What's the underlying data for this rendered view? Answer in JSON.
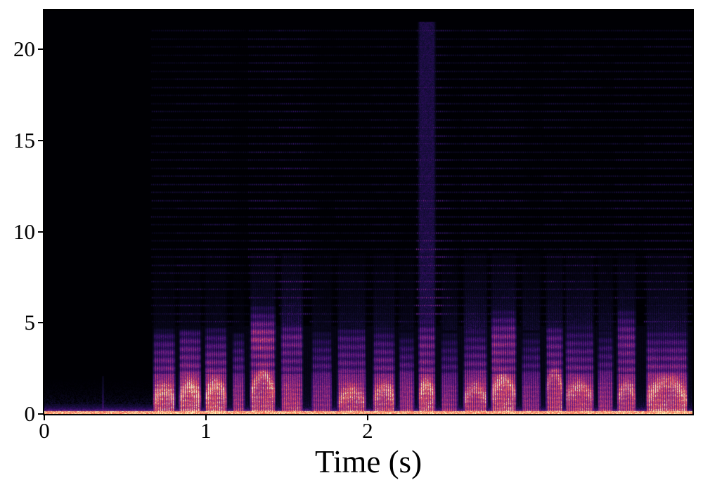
{
  "chart_data": {
    "type": "heatmap",
    "subtype": "speech-spectrogram",
    "title": "",
    "xlabel": "Time (s)",
    "ylabel": "",
    "xlim": [
      0,
      4.01
    ],
    "ylim": [
      0,
      22.13
    ],
    "x_ticks": [
      0,
      1,
      2
    ],
    "y_ticks": [
      0,
      5,
      10,
      15,
      20
    ],
    "grid": false,
    "legend": "none",
    "axis_color": "#000000",
    "background_color": "#000004",
    "colormap": {
      "name": "magma",
      "stops": [
        "#000004",
        "#100c30",
        "#320d64",
        "#58187e",
        "#7d2481",
        "#a4307d",
        "#cc4071",
        "#ed5860",
        "#fb8d61",
        "#fcfdbf"
      ]
    },
    "silence": {
      "t_start": 0.0,
      "t_end": 0.67,
      "click_t": 0.36,
      "noise_max_khz": 1.9
    },
    "speech": {
      "t_start": 0.67,
      "t_end": 3.98,
      "voiced_max_khz": 5.0,
      "harmonic_row_spacing_khz": 0.4435,
      "harmonic_rows_from_khz": 5.08,
      "harmonic_rows_to_khz": 21.4
    },
    "segments": [
      {
        "t0": 0.67,
        "t1": 0.81,
        "fmax": 4.6,
        "amp": 0.95,
        "harm": 0.55,
        "mid": 0.15,
        "fric": 0.0,
        "arc": [
          0.7,
          1.3
        ]
      },
      {
        "t0": 0.83,
        "t1": 0.97,
        "fmax": 4.6,
        "amp": 1.0,
        "harm": 0.6,
        "mid": 0.15,
        "fric": 0.2,
        "arc": [
          0.8,
          1.5
        ]
      },
      {
        "t0": 0.99,
        "t1": 1.13,
        "fmax": 4.7,
        "amp": 1.0,
        "harm": 0.65,
        "mid": 0.2,
        "fric": 0.0,
        "arc": [
          0.8,
          1.6
        ]
      },
      {
        "t0": 1.16,
        "t1": 1.24,
        "fmax": 4.4,
        "amp": 0.8,
        "harm": 0.35,
        "mid": 0.1,
        "fric": 0.0,
        "arc": null
      },
      {
        "t0": 1.27,
        "t1": 1.43,
        "fmax": 5.9,
        "amp": 0.95,
        "harm": 0.8,
        "mid": 0.45,
        "fric": 0.8,
        "arc": [
          1.0,
          2.2
        ]
      },
      {
        "t0": 1.46,
        "t1": 1.6,
        "fmax": 4.9,
        "amp": 0.85,
        "harm": 0.9,
        "mid": 0.55,
        "fric": 0.7,
        "arc": null
      },
      {
        "t0": 1.65,
        "t1": 1.78,
        "fmax": 4.5,
        "amp": 0.7,
        "harm": 0.45,
        "mid": 0.2,
        "fric": 0.0,
        "arc": null
      },
      {
        "t0": 1.81,
        "t1": 1.99,
        "fmax": 4.6,
        "amp": 0.85,
        "harm": 0.55,
        "mid": 0.3,
        "fric": 0.3,
        "arc": [
          0.6,
          1.2
        ]
      },
      {
        "t0": 2.03,
        "t1": 2.17,
        "fmax": 4.7,
        "amp": 0.9,
        "harm": 0.6,
        "mid": 0.3,
        "fric": 0.0,
        "arc": [
          0.8,
          1.4
        ]
      },
      {
        "t0": 2.19,
        "t1": 2.29,
        "fmax": 4.4,
        "amp": 0.75,
        "harm": 0.5,
        "mid": 0.2,
        "fric": 0.0,
        "arc": null
      },
      {
        "t0": 2.31,
        "t1": 2.42,
        "fmax": 5.2,
        "amp": 0.95,
        "harm": 1.3,
        "mid": 0.5,
        "fric": 0.4,
        "arc": [
          0.9,
          1.6
        ]
      },
      {
        "t0": 2.45,
        "t1": 2.56,
        "fmax": 4.4,
        "amp": 0.7,
        "harm": 0.5,
        "mid": 0.25,
        "fric": 0.0,
        "arc": null
      },
      {
        "t0": 2.59,
        "t1": 2.74,
        "fmax": 4.8,
        "amp": 0.85,
        "harm": 0.7,
        "mid": 0.45,
        "fric": 0.0,
        "arc": [
          0.7,
          1.4
        ]
      },
      {
        "t0": 2.76,
        "t1": 2.92,
        "fmax": 5.7,
        "amp": 0.95,
        "harm": 0.8,
        "mid": 0.5,
        "fric": 0.5,
        "arc": [
          1.0,
          1.9
        ]
      },
      {
        "t0": 2.95,
        "t1": 3.07,
        "fmax": 4.4,
        "amp": 0.7,
        "harm": 0.5,
        "mid": 0.3,
        "fric": 0.0,
        "arc": null
      },
      {
        "t0": 3.1,
        "t1": 3.21,
        "fmax": 4.8,
        "amp": 0.9,
        "harm": 0.65,
        "mid": 0.4,
        "fric": 0.4,
        "arc": [
          1.3,
          2.3
        ]
      },
      {
        "t0": 3.22,
        "t1": 3.4,
        "fmax": 4.9,
        "amp": 0.85,
        "harm": 0.7,
        "mid": 0.4,
        "fric": 0.0,
        "arc": [
          0.9,
          1.5
        ]
      },
      {
        "t0": 3.42,
        "t1": 3.52,
        "fmax": 4.5,
        "amp": 0.75,
        "harm": 0.55,
        "mid": 0.3,
        "fric": 0.0,
        "arc": null
      },
      {
        "t0": 3.54,
        "t1": 3.66,
        "fmax": 5.8,
        "amp": 0.85,
        "harm": 0.7,
        "mid": 0.45,
        "fric": 0.4,
        "arc": [
          0.8,
          1.5
        ]
      },
      {
        "t0": 3.72,
        "t1": 3.98,
        "fmax": 4.7,
        "amp": 0.95,
        "harm": 0.75,
        "mid": 0.4,
        "fric": 0.0,
        "arc": [
          0.8,
          1.8
        ]
      }
    ]
  }
}
